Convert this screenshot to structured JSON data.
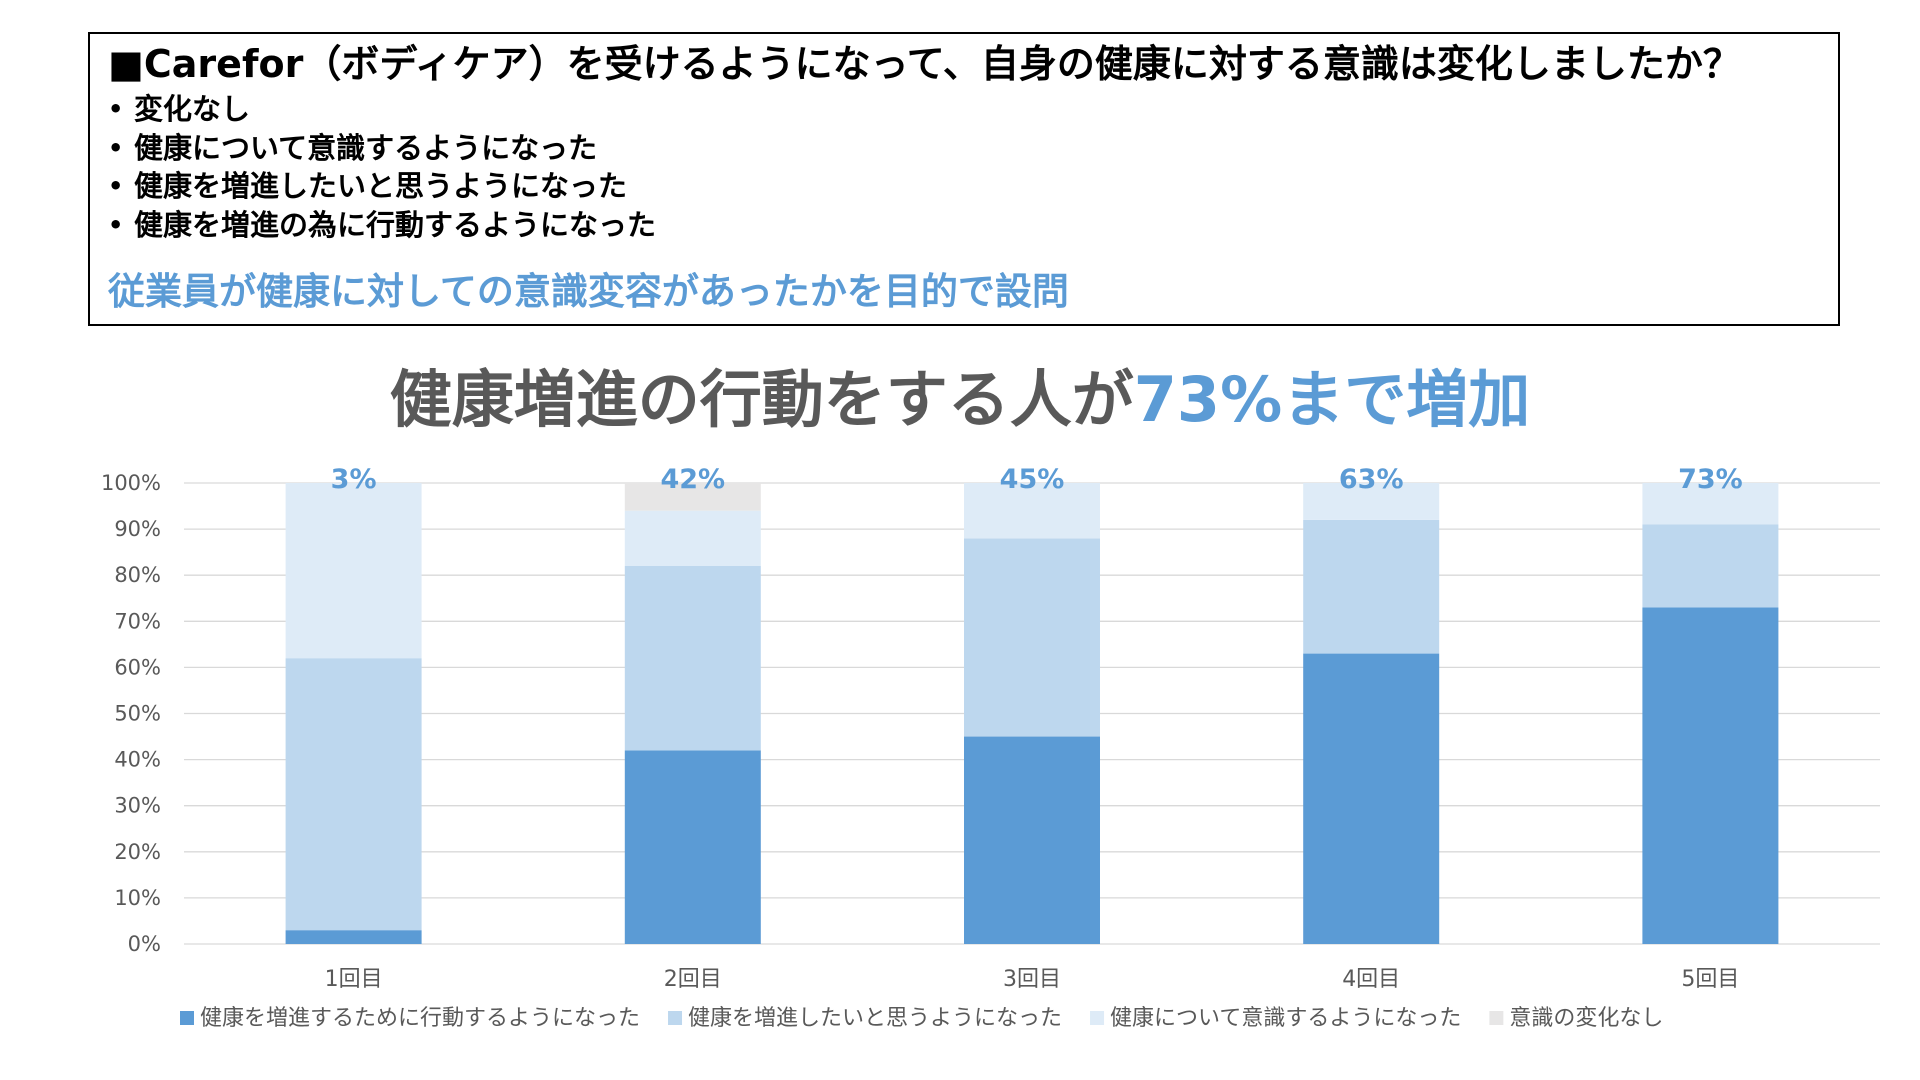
{
  "question_box": {
    "question": "■Carefor（ボディケア）を受けるようになって、自身の健康に対する意識は変化しましたか？",
    "options": [
      "変化なし",
      "健康について意識するようになった",
      "健康を増進したいと思うようになった",
      "健康を増進の為に行動するようになった"
    ],
    "purpose": "従業員が健康に対しての意識変容があったかを目的で設問"
  },
  "headline": {
    "part1": "健康増進の行動をする人が",
    "part2": "73%まで増加"
  },
  "colors": {
    "accent": "#5B9BD5",
    "headline_gray": "#595959",
    "series": [
      "#5B9BD5",
      "#BDD7EE",
      "#DEEBF7",
      "#E7E6E6"
    ],
    "grid": "#D9D9D9"
  },
  "chart_data": {
    "type": "bar",
    "stacked": true,
    "title": "健康増進の行動をする人が73%まで増加",
    "categories": [
      "1回目",
      "2回目",
      "3回目",
      "4回目",
      "5回目"
    ],
    "series": [
      {
        "name": "健康を増進するために行動するようになった",
        "values": [
          3,
          42,
          45,
          63,
          73
        ]
      },
      {
        "name": "健康を増進したいと思うようになった",
        "values": [
          59,
          40,
          43,
          29,
          18
        ]
      },
      {
        "name": "健康について意識するようになった",
        "values": [
          38,
          12,
          12,
          8,
          9
        ]
      },
      {
        "name": "意識の変化なし",
        "values": [
          0,
          6,
          0,
          0,
          0
        ]
      }
    ],
    "data_labels": [
      "3%",
      "42%",
      "45%",
      "63%",
      "73%"
    ],
    "yticks": [
      "0%",
      "10%",
      "20%",
      "30%",
      "40%",
      "50%",
      "60%",
      "70%",
      "80%",
      "90%",
      "100%"
    ],
    "ylim": [
      0,
      100
    ],
    "xlabel": "",
    "ylabel": "",
    "grid": true,
    "legend_position": "bottom"
  }
}
